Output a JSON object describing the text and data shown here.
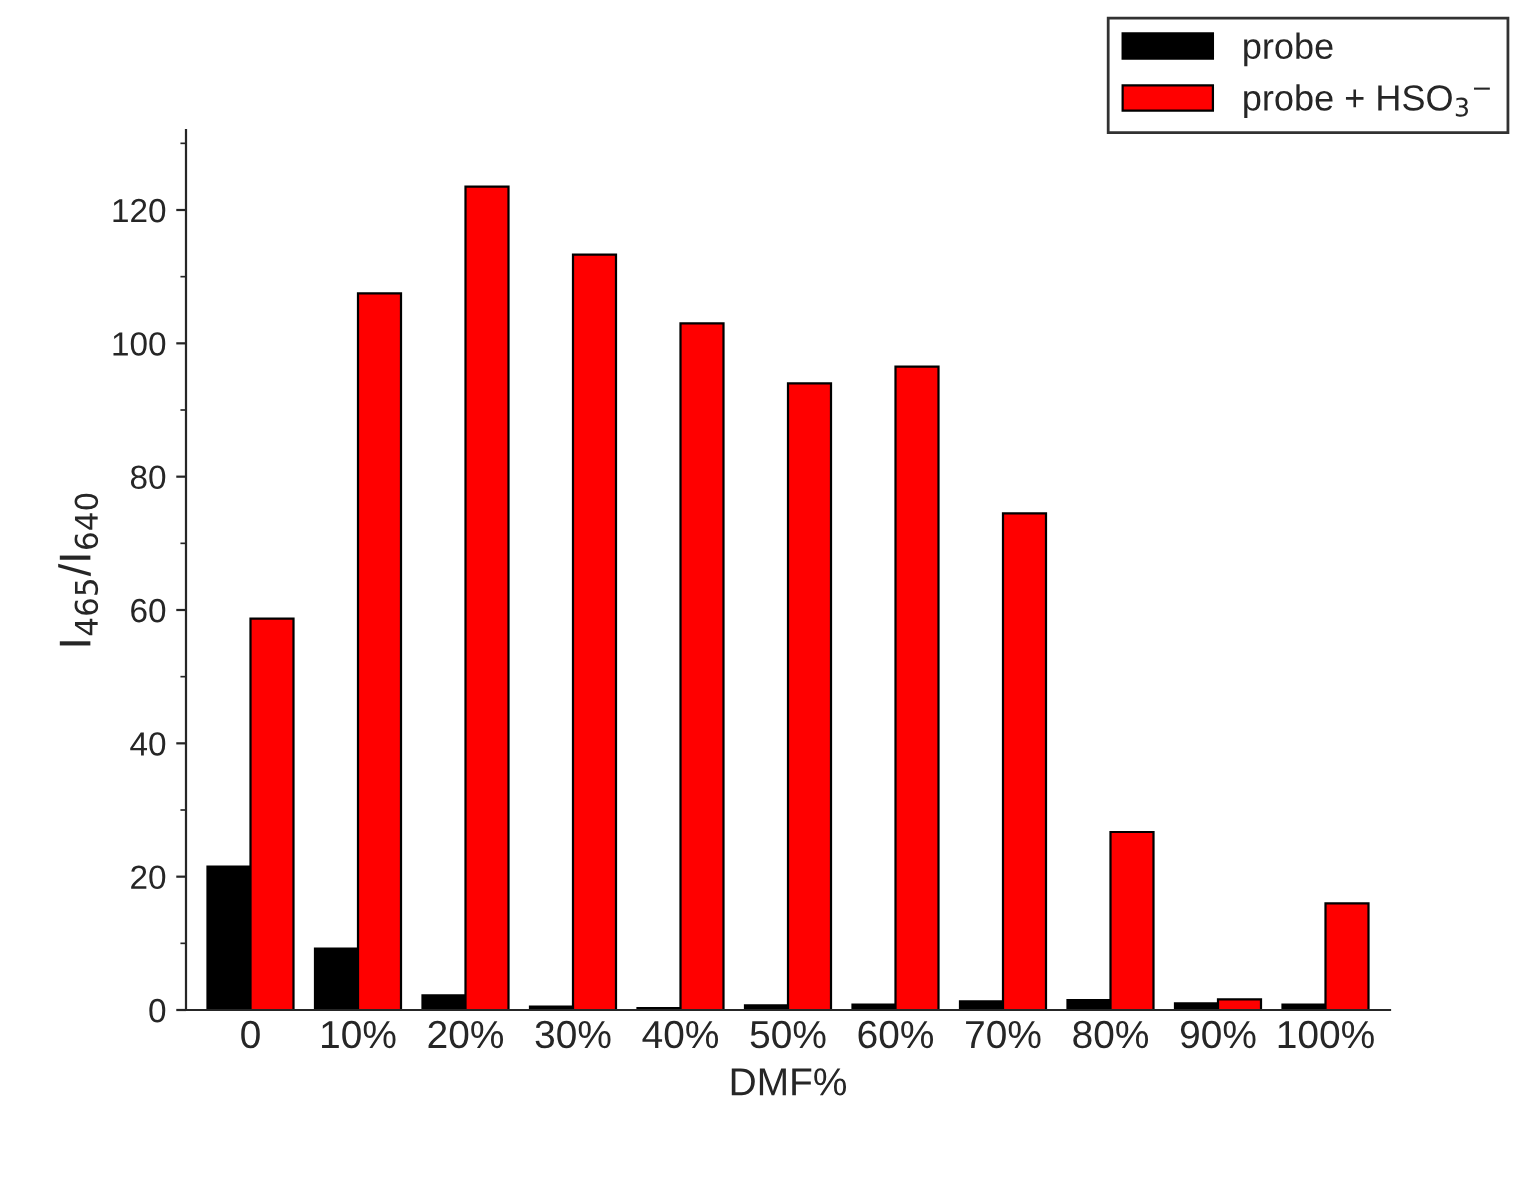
{
  "chart_data": {
    "type": "bar",
    "xlabel": "DMF%",
    "ylabel": "I$_{465}$/I$_{640}$",
    "categories": [
      "0",
      "10%",
      "20%",
      "30%",
      "40%",
      "50%",
      "60%",
      "70%",
      "80%",
      "90%",
      "100%"
    ],
    "series": [
      {
        "name": "probe",
        "color": "#000000",
        "values": [
          21.5,
          9.2,
          2.2,
          0.5,
          0.3,
          0.7,
          0.8,
          1.3,
          1.5,
          1.0,
          0.8
        ]
      },
      {
        "name": "probe + HSO$_{3}$$^{−}$",
        "color": "#ff0000",
        "values": [
          58.7,
          107.5,
          123.5,
          113.3,
          103,
          94,
          96.5,
          74.5,
          26.7,
          1.6,
          16
        ]
      }
    ],
    "ylim": [
      0,
      132
    ],
    "yticks": [
      0,
      20,
      40,
      60,
      80,
      100,
      120
    ],
    "grid": false,
    "legend": "top right"
  }
}
